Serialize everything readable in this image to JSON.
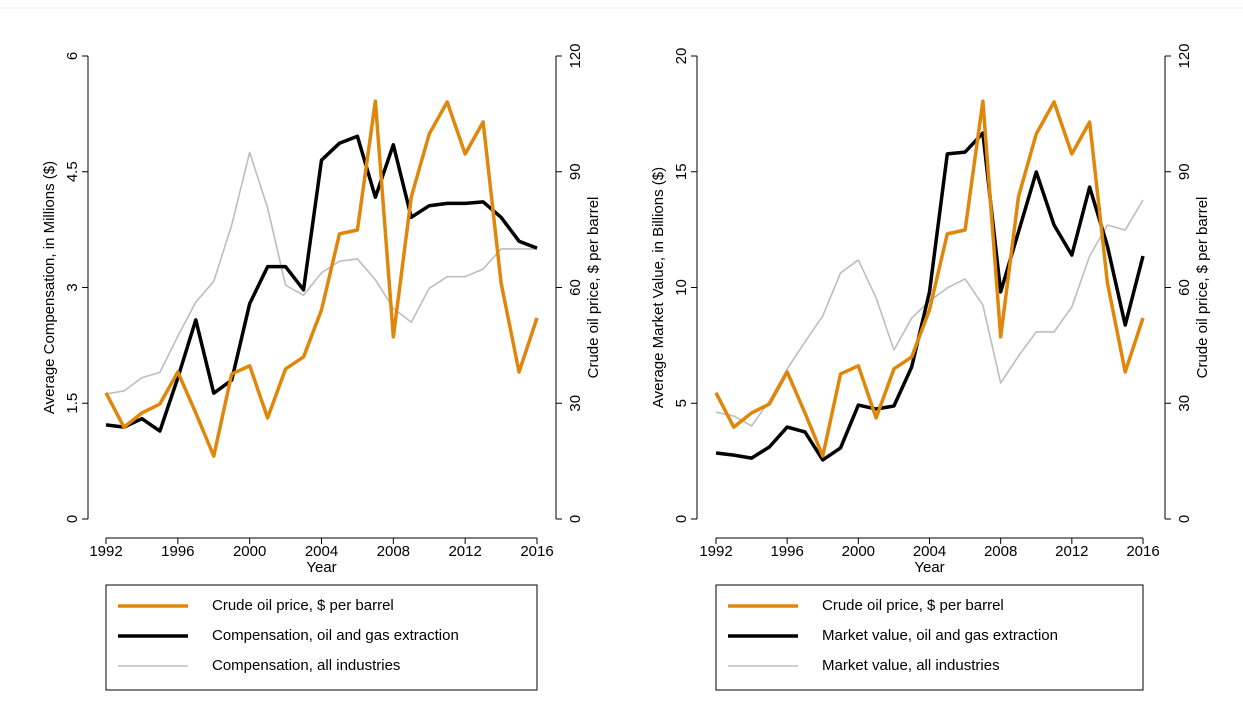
{
  "chart_data": [
    {
      "type": "line",
      "xlabel": "Year",
      "ylabel": "Average Compensation, in Millions ($)",
      "y2label": "Crude oil price, $ per barrel",
      "x": [
        1992,
        1993,
        1994,
        1995,
        1996,
        1997,
        1998,
        1999,
        2000,
        2001,
        2002,
        2003,
        2004,
        2005,
        2006,
        2007,
        2008,
        2009,
        2010,
        2011,
        2012,
        2013,
        2014,
        2015,
        2016
      ],
      "xlim": [
        1992,
        2016
      ],
      "xticks": [
        1992,
        1996,
        2000,
        2004,
        2008,
        2012,
        2016
      ],
      "ylim": [
        0,
        6
      ],
      "yticks": [
        0,
        1.5,
        3,
        4.5,
        6
      ],
      "y2lim": [
        0,
        120
      ],
      "y2ticks": [
        0,
        30,
        60,
        90,
        120
      ],
      "series": [
        {
          "name": "Crude oil price, $ per barrel",
          "color": "#e0860b",
          "axis": "y2",
          "width": 3.5,
          "values": [
            32.7,
            23.8,
            27.5,
            29.8,
            38.1,
            27.5,
            16.3,
            37.6,
            39.7,
            26.2,
            38.9,
            42,
            54.2,
            73.9,
            74.9,
            108.3,
            47.2,
            83.5,
            99.8,
            108.1,
            94.6,
            102.9,
            61.2,
            38.1,
            52.1
          ]
        },
        {
          "name": "Compensation, oil and gas extraction",
          "color": "#000000",
          "width": 3.5,
          "values": [
            1.22,
            1.19,
            1.3,
            1.14,
            1.83,
            2.58,
            1.63,
            1.8,
            2.79,
            3.27,
            3.27,
            2.97,
            4.65,
            4.87,
            4.96,
            4.17,
            4.85,
            3.91,
            4.06,
            4.09,
            4.09,
            4.11,
            3.91,
            3.6,
            3.51
          ]
        },
        {
          "name": "Compensation, all industries",
          "color": "#bdbdbd",
          "width": 1.6,
          "values": [
            1.62,
            1.66,
            1.83,
            1.9,
            2.37,
            2.81,
            3.08,
            3.81,
            4.75,
            4.03,
            3.03,
            2.9,
            3.19,
            3.34,
            3.37,
            3.1,
            2.73,
            2.55,
            2.99,
            3.14,
            3.14,
            3.24,
            3.5,
            3.5,
            3.5
          ]
        }
      ]
    },
    {
      "type": "line",
      "xlabel": "Year",
      "ylabel": "Average Market Value, in Billions ($)",
      "y2label": "Crude oil price, $ per barrel",
      "x": [
        1992,
        1993,
        1994,
        1995,
        1996,
        1997,
        1998,
        1999,
        2000,
        2001,
        2002,
        2003,
        2004,
        2005,
        2006,
        2007,
        2008,
        2009,
        2010,
        2011,
        2012,
        2013,
        2014,
        2015,
        2016
      ],
      "xlim": [
        1992,
        2016
      ],
      "xticks": [
        1992,
        1996,
        2000,
        2004,
        2008,
        2012,
        2016
      ],
      "ylim": [
        0,
        20
      ],
      "yticks": [
        0,
        5,
        10,
        15,
        20
      ],
      "y2lim": [
        0,
        120
      ],
      "y2ticks": [
        0,
        30,
        60,
        90,
        120
      ],
      "series": [
        {
          "name": "Crude oil price, $ per barrel",
          "color": "#e0860b",
          "axis": "y2",
          "width": 3.5,
          "values": [
            32.7,
            23.8,
            27.5,
            29.8,
            38.1,
            27.5,
            16.3,
            37.6,
            39.7,
            26.2,
            38.9,
            42,
            54.2,
            73.9,
            74.9,
            108.3,
            47.2,
            83.5,
            99.8,
            108.1,
            94.6,
            102.9,
            61.2,
            38.1,
            52.1
          ]
        },
        {
          "name": "Market value, oil and gas extraction",
          "color": "#000000",
          "width": 3.5,
          "values": [
            2.85,
            2.76,
            2.63,
            3.11,
            3.97,
            3.76,
            2.55,
            3.07,
            4.92,
            4.75,
            4.88,
            6.57,
            9.81,
            15.77,
            15.85,
            16.67,
            9.81,
            12.4,
            14.99,
            12.7,
            11.4,
            14.34,
            11.79,
            8.38,
            11.36
          ]
        },
        {
          "name": "Market value, all industries",
          "color": "#bdbdbd",
          "width": 1.6,
          "values": [
            4.62,
            4.45,
            4.02,
            5.1,
            6.48,
            7.65,
            8.77,
            10.63,
            11.19,
            9.55,
            7.3,
            8.68,
            9.42,
            9.98,
            10.37,
            9.24,
            5.87,
            7.04,
            8.08,
            8.08,
            9.16,
            11.36,
            12.7,
            12.48,
            13.78
          ]
        }
      ]
    }
  ]
}
